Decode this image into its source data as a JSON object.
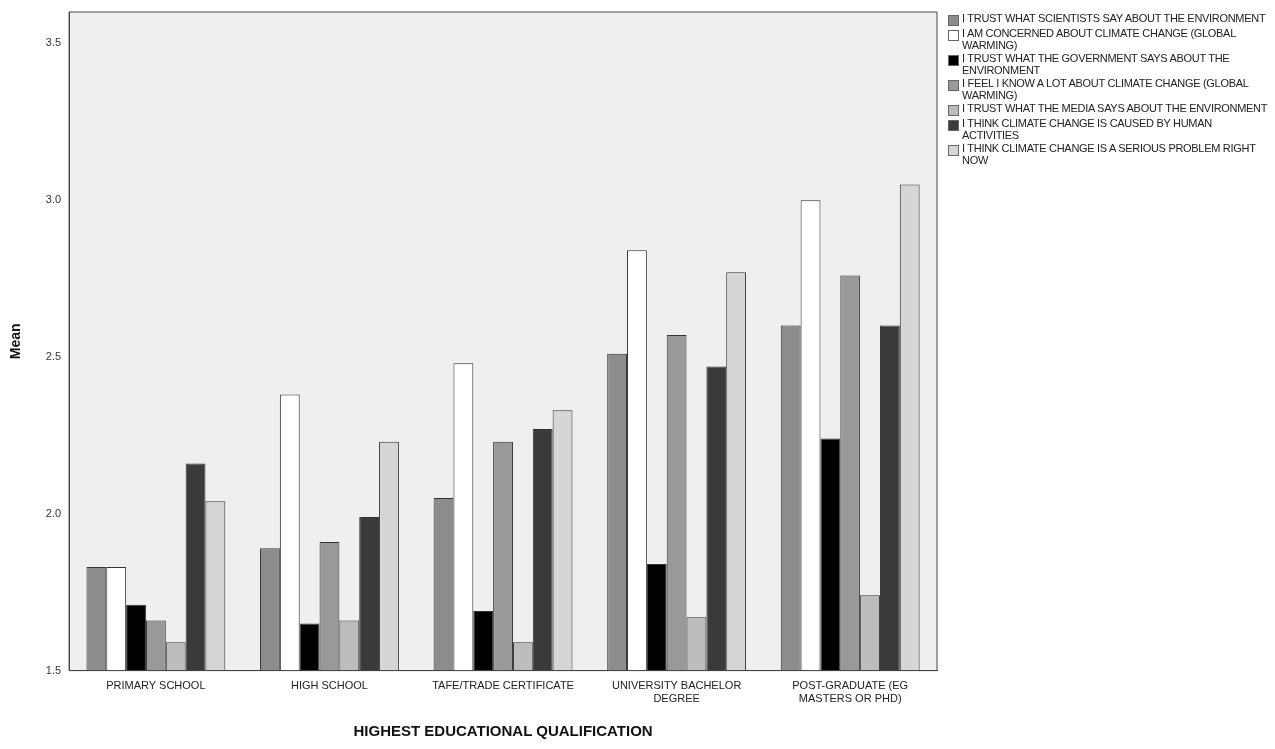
{
  "chart_data": {
    "type": "bar",
    "xlabel": "HIGHEST EDUCATIONAL QUALIFICATION",
    "ylabel": "Mean",
    "categories": [
      "PRIMARY SCHOOL",
      "HIGH SCHOOL",
      "TAFE/TRADE CERTIFICATE",
      "UNIVERSITY BACHELOR DEGREE",
      "POST-GRADUATE (EG MASTERS OR PHD)"
    ],
    "series": [
      {
        "name": "I TRUST WHAT SCIENTISTS SAY ABOUT THE ENVIRONMENT",
        "color": "#8c8c8c",
        "values": [
          1.83,
          1.89,
          2.05,
          2.51,
          2.6
        ]
      },
      {
        "name": "I AM CONCERNED ABOUT CLIMATE CHANGE (GLOBAL WARMING)",
        "color": "#ffffff",
        "values": [
          1.83,
          2.38,
          2.48,
          2.84,
          3.0
        ]
      },
      {
        "name": "I TRUST WHAT THE GOVERNMENT SAYS ABOUT THE ENVIRONMENT",
        "color": "#000000",
        "values": [
          1.71,
          1.65,
          1.69,
          1.84,
          2.24
        ]
      },
      {
        "name": "I FEEL I KNOW A LOT ABOUT CLIMATE CHANGE (GLOBAL WARMING)",
        "color": "#999999",
        "values": [
          1.66,
          1.91,
          2.23,
          2.57,
          2.76
        ]
      },
      {
        "name": "I TRUST WHAT THE MEDIA SAYS ABOUT THE ENVIRONMENT",
        "color": "#bcbcbc",
        "values": [
          1.59,
          1.66,
          1.59,
          1.67,
          1.74
        ]
      },
      {
        "name": "I THINK CLIMATE CHANGE IS CAUSED BY HUMAN ACTIVITIES",
        "color": "#3a3a3a",
        "values": [
          2.16,
          1.99,
          2.27,
          2.47,
          2.6
        ]
      },
      {
        "name": "I THINK CLIMATE CHANGE IS A SERIOUS PROBLEM RIGHT NOW",
        "color": "#d6d6d6",
        "values": [
          2.04,
          2.23,
          2.33,
          2.77,
          3.05
        ]
      }
    ],
    "ylim": [
      1.5,
      3.6
    ],
    "yticks": [
      {
        "value": 1.5,
        "label": "1.5"
      },
      {
        "value": 2,
        "label": "2.0"
      },
      {
        "value": 2.5,
        "label": "2.5"
      },
      {
        "value": 3,
        "label": "3.0"
      },
      {
        "value": 3.5,
        "label": "3.5"
      }
    ],
    "grid": false,
    "legend": "right"
  }
}
